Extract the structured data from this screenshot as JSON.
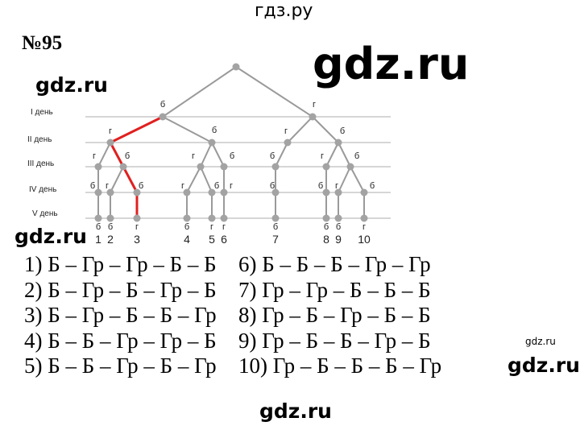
{
  "watermarks": {
    "top": "гдз.ру",
    "big": "gdz.ru",
    "left1": "gdz.ru",
    "left2": "gdz.ru",
    "mid": "gdz.ru",
    "small": "gdz.ru",
    "bottom": "gdz.ru"
  },
  "title": "№95",
  "tree": {
    "colors": {
      "edge": "#9a9a9a",
      "node": "#a3a3a3",
      "guide": "#c8c8c8",
      "highlight": "#e02020"
    },
    "day_labels": [
      "I день",
      "II день",
      "III день",
      "IV день",
      "V день"
    ],
    "nodes": [
      {
        "id": "r",
        "parent": null,
        "level": 0,
        "label": ""
      },
      {
        "id": "a",
        "parent": "r",
        "level": 1,
        "label": "б"
      },
      {
        "id": "b",
        "parent": "r",
        "level": 1,
        "label": "г"
      },
      {
        "id": "a1",
        "parent": "a",
        "level": 2,
        "label": "г"
      },
      {
        "id": "a2",
        "parent": "a",
        "level": 2,
        "label": "б"
      },
      {
        "id": "b1",
        "parent": "b",
        "level": 2,
        "label": "г"
      },
      {
        "id": "b2",
        "parent": "b",
        "level": 2,
        "label": "б"
      },
      {
        "id": "a1a",
        "parent": "a1",
        "level": 3,
        "label": "г"
      },
      {
        "id": "a1b",
        "parent": "a1",
        "level": 3,
        "label": "б"
      },
      {
        "id": "a2a",
        "parent": "a2",
        "level": 3,
        "label": "г"
      },
      {
        "id": "a2b",
        "parent": "a2",
        "level": 3,
        "label": "б"
      },
      {
        "id": "b1a",
        "parent": "b1",
        "level": 3,
        "label": "б"
      },
      {
        "id": "b2a",
        "parent": "b2",
        "level": 3,
        "label": "г"
      },
      {
        "id": "b2b",
        "parent": "b2",
        "level": 3,
        "label": "б"
      },
      {
        "id": "a1a1",
        "parent": "a1a",
        "level": 4,
        "label": "б"
      },
      {
        "id": "a1b1",
        "parent": "a1b",
        "level": 4,
        "label": "г"
      },
      {
        "id": "a1b2",
        "parent": "a1b",
        "level": 4,
        "label": "б"
      },
      {
        "id": "a2a1",
        "parent": "a2a",
        "level": 4,
        "label": "г"
      },
      {
        "id": "a2a2",
        "parent": "a2a",
        "level": 4,
        "label": "б"
      },
      {
        "id": "a2b1",
        "parent": "a2b",
        "level": 4,
        "label": "г"
      },
      {
        "id": "b1a1",
        "parent": "b1a",
        "level": 4,
        "label": "б"
      },
      {
        "id": "b2a1",
        "parent": "b2a",
        "level": 4,
        "label": "б"
      },
      {
        "id": "b2b1",
        "parent": "b2b",
        "level": 4,
        "label": "г"
      },
      {
        "id": "b2b2",
        "parent": "b2b",
        "level": 4,
        "label": "б"
      },
      {
        "id": "L1",
        "parent": "a1a1",
        "level": 5,
        "label": "б",
        "number": "1"
      },
      {
        "id": "L2",
        "parent": "a1b1",
        "level": 5,
        "label": "б",
        "number": "2"
      },
      {
        "id": "L3",
        "parent": "a1b2",
        "level": 5,
        "label": "г",
        "number": "3"
      },
      {
        "id": "L4",
        "parent": "a2a1",
        "level": 5,
        "label": "б",
        "number": "4"
      },
      {
        "id": "L5",
        "parent": "a2a2",
        "level": 5,
        "label": "г",
        "number": "5"
      },
      {
        "id": "L6",
        "parent": "a2b1",
        "level": 5,
        "label": "г",
        "number": "6"
      },
      {
        "id": "L7",
        "parent": "b1a1",
        "level": 5,
        "label": "б",
        "number": "7"
      },
      {
        "id": "L8",
        "parent": "b2a1",
        "level": 5,
        "label": "б",
        "number": "8"
      },
      {
        "id": "L9",
        "parent": "b2b1",
        "level": 5,
        "label": "б",
        "number": "9"
      },
      {
        "id": "L10",
        "parent": "b2b2",
        "level": 5,
        "label": "г",
        "number": "10"
      }
    ],
    "highlighted_path": [
      "a",
      "a1",
      "a1b",
      "a1b2",
      "L3"
    ]
  },
  "answers": {
    "left": [
      "1) Б – Гр – Гр – Б – Б",
      "2) Б – Гр – Б – Гр – Б",
      "3) Б – Гр – Б – Б – Гр",
      "4) Б – Б – Гр – Гр – Б",
      "5) Б – Б – Гр – Б – Гр"
    ],
    "right": [
      "6) Б – Б – Б – Гр – Гр",
      "7) Гр – Гр – Б – Б – Б",
      "8) Гр – Б – Гр – Б – Б",
      "9) Гр – Б – Б – Гр – Б",
      "10) Гр – Б – Б – Б – Гр"
    ]
  }
}
